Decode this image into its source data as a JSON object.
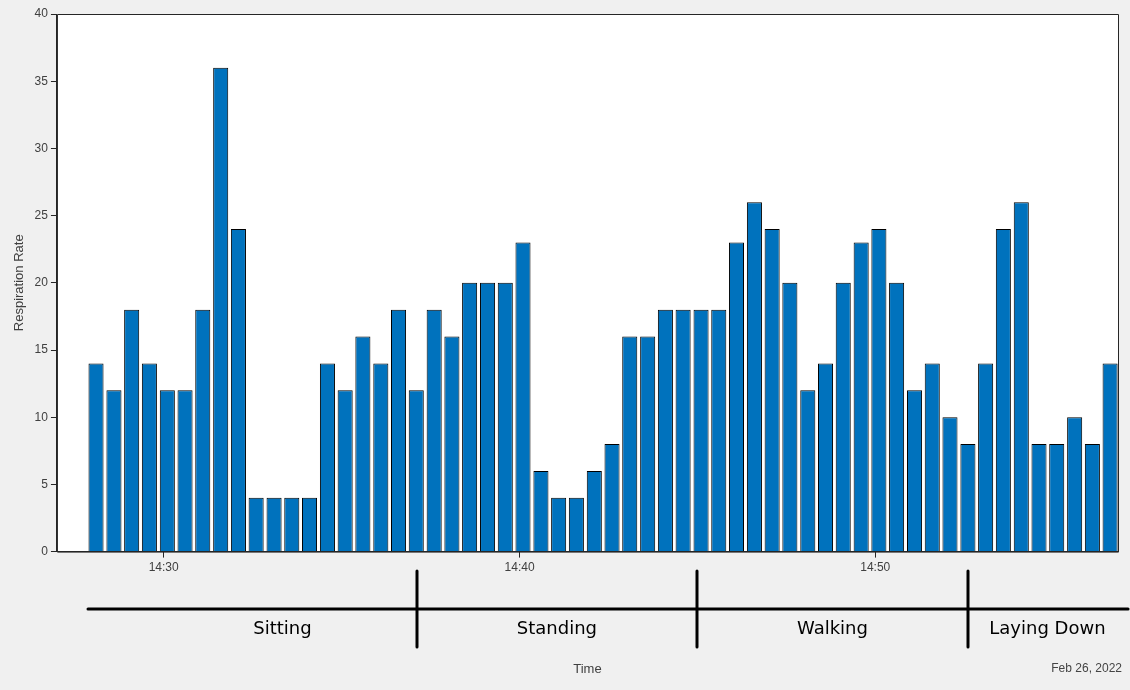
{
  "chart_data": {
    "type": "bar",
    "ylabel": "Respiration Rate",
    "x": [
      14.4683,
      14.4767,
      14.485,
      14.4933,
      14.5017,
      14.51,
      14.5183,
      14.5267,
      14.535,
      14.5433,
      14.5517,
      14.56,
      14.5683,
      14.5767,
      14.585,
      14.5933,
      14.6017,
      14.61,
      14.6183,
      14.6267,
      14.635,
      14.6433,
      14.6517,
      14.66,
      14.6683,
      14.6767,
      14.685,
      14.6933,
      14.7017,
      14.71,
      14.7183,
      14.7267,
      14.735,
      14.7433,
      14.7517,
      14.76,
      14.7683,
      14.7767,
      14.785,
      14.7933,
      14.8017,
      14.81,
      14.8183,
      14.8267,
      14.835,
      14.8433,
      14.8517,
      14.86,
      14.8683,
      14.8767,
      14.885,
      14.8933,
      14.9017,
      14.91,
      14.9183,
      14.9267,
      14.935,
      14.9433
    ],
    "values": [
      14,
      12,
      18,
      14,
      12,
      12,
      18,
      36,
      24,
      4,
      4,
      4,
      4,
      14,
      12,
      16,
      14,
      18,
      12,
      18,
      16,
      20,
      20,
      20,
      23,
      6,
      4,
      4,
      6,
      8,
      16,
      16,
      18,
      18,
      18,
      18,
      23,
      26,
      24,
      20,
      12,
      14,
      20,
      23,
      24,
      20,
      12,
      14,
      10,
      8,
      14,
      24,
      26,
      8,
      8,
      10,
      8,
      14
    ],
    "color": "#0072bd",
    "xlim": [
      14.45,
      14.947
    ],
    "xticks": [
      {
        "value": 14.5,
        "label": "14:30"
      },
      {
        "value": 14.6667,
        "label": "14:40"
      },
      {
        "value": 14.8333,
        "label": "14:50"
      }
    ],
    "ylim": [
      0,
      40
    ],
    "yticks": [
      0,
      5,
      10,
      15,
      20,
      25,
      30,
      35,
      40
    ],
    "grid": false,
    "legend": false,
    "annotations": [
      "Sitting",
      "Standing",
      "Walking",
      "Laying Down",
      "Time",
      "Feb 26, 2022"
    ]
  }
}
